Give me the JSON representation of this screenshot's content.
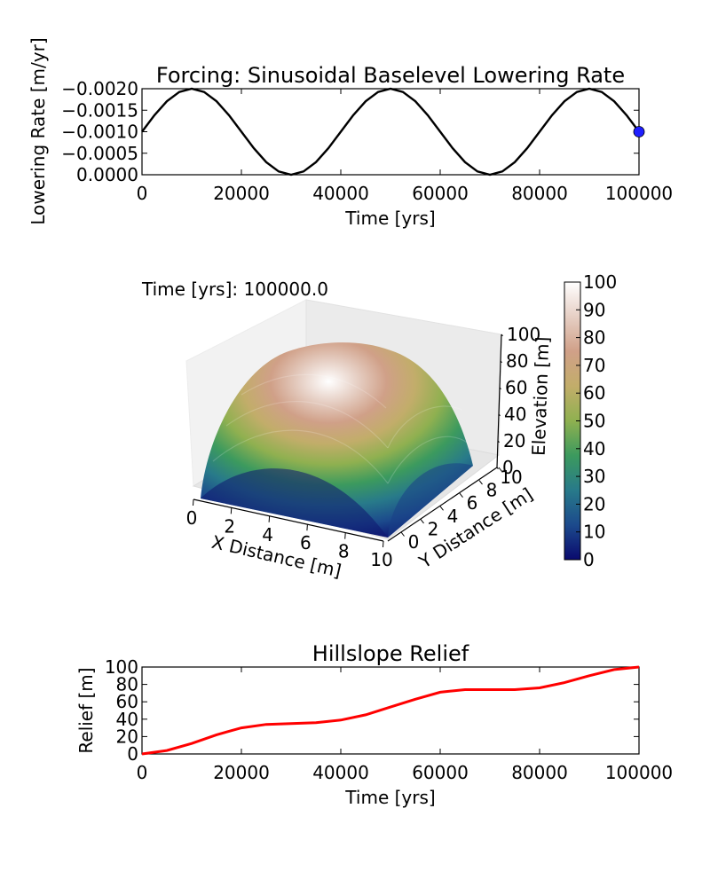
{
  "chart_data": [
    {
      "type": "line",
      "title": "Forcing: Sinusoidal Baselevel Lowering Rate",
      "xlabel": "Time [yrs]",
      "ylabel": "Lowering Rate [m/yr]",
      "xlim": [
        0,
        100000
      ],
      "ylim": [
        0.0,
        -0.002
      ],
      "xticks": [
        0,
        20000,
        40000,
        60000,
        80000,
        100000
      ],
      "xtick_labels": [
        "0",
        "20000",
        "40000",
        "60000",
        "80000",
        "100000"
      ],
      "yticks": [
        -0.002,
        -0.0015,
        -0.001,
        -0.0005,
        0.0
      ],
      "ytick_labels": [
        "−0.0020",
        "−0.0015",
        "−0.0010",
        "−0.0005",
        "0.0000"
      ],
      "series": [
        {
          "name": "lowering rate",
          "color": "#000000",
          "x": [
            0,
            2500,
            5000,
            7500,
            10000,
            12500,
            15000,
            17500,
            20000,
            22500,
            25000,
            27500,
            30000,
            32500,
            35000,
            37500,
            40000,
            42500,
            45000,
            47500,
            50000,
            52500,
            55000,
            57500,
            60000,
            62500,
            65000,
            67500,
            70000,
            72500,
            75000,
            77500,
            80000,
            82500,
            85000,
            87500,
            90000,
            92500,
            95000,
            97500,
            100000
          ],
          "values": [
            -0.001,
            -0.001383,
            -0.001707,
            -0.001924,
            -0.002,
            -0.001924,
            -0.001707,
            -0.001383,
            -0.001,
            -0.000617,
            -0.000293,
            -7.6e-05,
            0.0,
            -7.6e-05,
            -0.000293,
            -0.000617,
            -0.001,
            -0.001383,
            -0.001707,
            -0.001924,
            -0.002,
            -0.001924,
            -0.001707,
            -0.001383,
            -0.001,
            -0.000617,
            -0.000293,
            -7.6e-05,
            0.0,
            -7.6e-05,
            -0.000293,
            -0.000617,
            -0.001,
            -0.001383,
            -0.001707,
            -0.001924,
            -0.002,
            -0.001924,
            -0.001707,
            -0.001383,
            -0.001
          ]
        }
      ],
      "marker": {
        "x": 100000,
        "y": -0.001,
        "color": "#1f1fff"
      }
    },
    {
      "type": "surface3d",
      "annotation": "Time [yrs]: 100000.0",
      "xlabel": "X Distance [m]",
      "ylabel": "Y Distance [m]",
      "zlabel": "Elevation [m]",
      "xlim": [
        0,
        10
      ],
      "ylim": [
        0,
        10
      ],
      "zlim": [
        0,
        100
      ],
      "xtick_labels": [
        "0",
        "2",
        "4",
        "6",
        "8",
        "10"
      ],
      "ytick_labels": [
        "0",
        "2",
        "4",
        "6",
        "8",
        "10"
      ],
      "ztick_labels": [
        "0",
        "20",
        "40",
        "60",
        "80",
        "100"
      ],
      "colorbar": {
        "label": "Elevation",
        "range": [
          0,
          100
        ],
        "tick_labels": [
          "0",
          "10",
          "20",
          "30",
          "40",
          "50",
          "60",
          "70",
          "80",
          "90",
          "100"
        ],
        "colormap": "gist_earth",
        "stops": [
          "#0a0a6e",
          "#1c4a8c",
          "#287a8a",
          "#3c9a5e",
          "#8fb050",
          "#c2ad6a",
          "#d0a088",
          "#e6cfc4",
          "#ffffff"
        ]
      },
      "surface": {
        "shape": "dome",
        "peak": 100,
        "edge": 0
      }
    },
    {
      "type": "line",
      "title": "Hillslope Relief",
      "xlabel": "Time [yrs]",
      "ylabel": "Relief [m]",
      "xlim": [
        0,
        100000
      ],
      "ylim": [
        0,
        100
      ],
      "xticks": [
        0,
        20000,
        40000,
        60000,
        80000,
        100000
      ],
      "xtick_labels": [
        "0",
        "20000",
        "40000",
        "60000",
        "80000",
        "100000"
      ],
      "yticks": [
        0,
        20,
        40,
        60,
        80,
        100
      ],
      "ytick_labels": [
        "0",
        "20",
        "40",
        "60",
        "80",
        "100"
      ],
      "series": [
        {
          "name": "relief",
          "color": "#ff0000",
          "x": [
            0,
            5000,
            10000,
            15000,
            20000,
            25000,
            30000,
            35000,
            40000,
            45000,
            50000,
            55000,
            60000,
            65000,
            70000,
            75000,
            80000,
            85000,
            90000,
            95000,
            100000
          ],
          "values": [
            0,
            4,
            12,
            22,
            30,
            34,
            35,
            36,
            39,
            45,
            54,
            63,
            71,
            74,
            74,
            74,
            76,
            82,
            90,
            97,
            100
          ]
        }
      ]
    }
  ]
}
